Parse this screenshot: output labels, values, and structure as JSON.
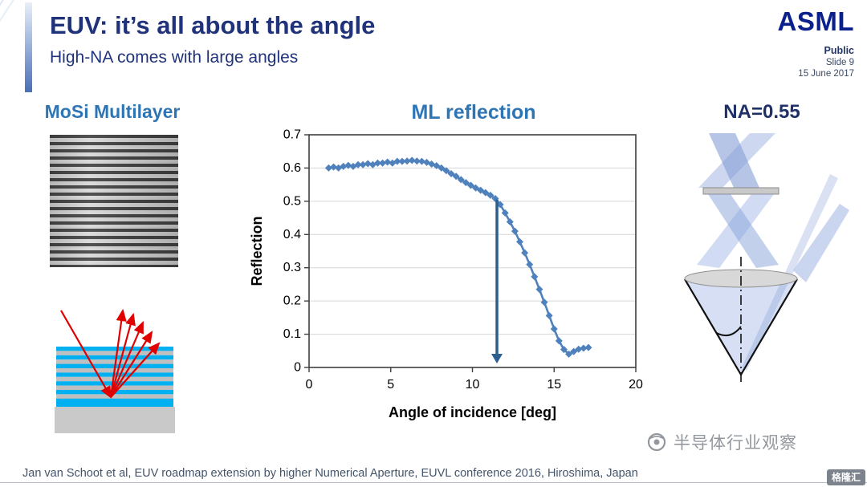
{
  "slide": {
    "title": "EUV: it’s all about the angle",
    "subtitle": "High-NA comes with large angles",
    "footer_citation": "Jan van Schoot et al, EUV roadmap extension by higher Numerical Aperture, EUVL conference 2016, Hiroshima, Japan"
  },
  "header_meta": {
    "logo_text": "ASML",
    "classification": "Public",
    "slide_number": "Slide 9",
    "date": "15 June 2017"
  },
  "sections": {
    "left_heading": "MoSi Multilayer",
    "center_heading": "ML reflection",
    "right_heading": "NA=0.55"
  },
  "watermark": {
    "text": "半导体行业观察",
    "badge_text": "格隆汇"
  },
  "colors": {
    "title_navy": "#20337A",
    "heading_blue": "#2E75B6",
    "na_navy": "#1F3068",
    "series_blue": "#4F81BD",
    "arrow_blue": "#2B5F8F",
    "stripe_cyan": "#00B0F0",
    "stripe_gray": "#BFBFBF",
    "substrate_gray": "#C9C9C9",
    "ray_red": "#E00000"
  },
  "chart_data": {
    "type": "scatter",
    "title": "ML reflection",
    "xlabel": "Angle of incidence [deg]",
    "ylabel": "Reflection",
    "xlim": [
      0,
      20
    ],
    "ylim": [
      0,
      0.7
    ],
    "x_ticks": [
      0,
      5,
      10,
      15,
      20
    ],
    "y_ticks": [
      0,
      0.1,
      0.2,
      0.3,
      0.4,
      0.5,
      0.6,
      0.7
    ],
    "grid": "horizontal",
    "legend": "none",
    "marker": "diamond",
    "points": [
      [
        1.2,
        0.6
      ],
      [
        1.5,
        0.603
      ],
      [
        1.8,
        0.6
      ],
      [
        2.1,
        0.605
      ],
      [
        2.4,
        0.608
      ],
      [
        2.7,
        0.605
      ],
      [
        3.0,
        0.61
      ],
      [
        3.3,
        0.61
      ],
      [
        3.6,
        0.613
      ],
      [
        3.9,
        0.61
      ],
      [
        4.2,
        0.615
      ],
      [
        4.5,
        0.615
      ],
      [
        4.8,
        0.618
      ],
      [
        5.1,
        0.615
      ],
      [
        5.4,
        0.62
      ],
      [
        5.7,
        0.62
      ],
      [
        6.0,
        0.621
      ],
      [
        6.3,
        0.623
      ],
      [
        6.6,
        0.621
      ],
      [
        6.9,
        0.62
      ],
      [
        7.2,
        0.617
      ],
      [
        7.5,
        0.612
      ],
      [
        7.8,
        0.607
      ],
      [
        8.1,
        0.6
      ],
      [
        8.4,
        0.592
      ],
      [
        8.7,
        0.583
      ],
      [
        9.0,
        0.575
      ],
      [
        9.3,
        0.565
      ],
      [
        9.6,
        0.556
      ],
      [
        9.9,
        0.548
      ],
      [
        10.2,
        0.54
      ],
      [
        10.5,
        0.533
      ],
      [
        10.8,
        0.526
      ],
      [
        11.1,
        0.518
      ],
      [
        11.4,
        0.508
      ],
      [
        11.7,
        0.49
      ],
      [
        12.0,
        0.465
      ],
      [
        12.3,
        0.438
      ],
      [
        12.6,
        0.41
      ],
      [
        12.9,
        0.378
      ],
      [
        13.2,
        0.345
      ],
      [
        13.5,
        0.31
      ],
      [
        13.8,
        0.273
      ],
      [
        14.1,
        0.235
      ],
      [
        14.4,
        0.196
      ],
      [
        14.7,
        0.156
      ],
      [
        15.0,
        0.116
      ],
      [
        15.3,
        0.08
      ],
      [
        15.6,
        0.054
      ],
      [
        15.9,
        0.04
      ],
      [
        16.2,
        0.048
      ],
      [
        16.5,
        0.055
      ],
      [
        16.8,
        0.058
      ],
      [
        17.1,
        0.06
      ]
    ],
    "annotation_arrow": {
      "x": 11.5,
      "y_from": 0.505,
      "y_to": 0.012
    }
  }
}
